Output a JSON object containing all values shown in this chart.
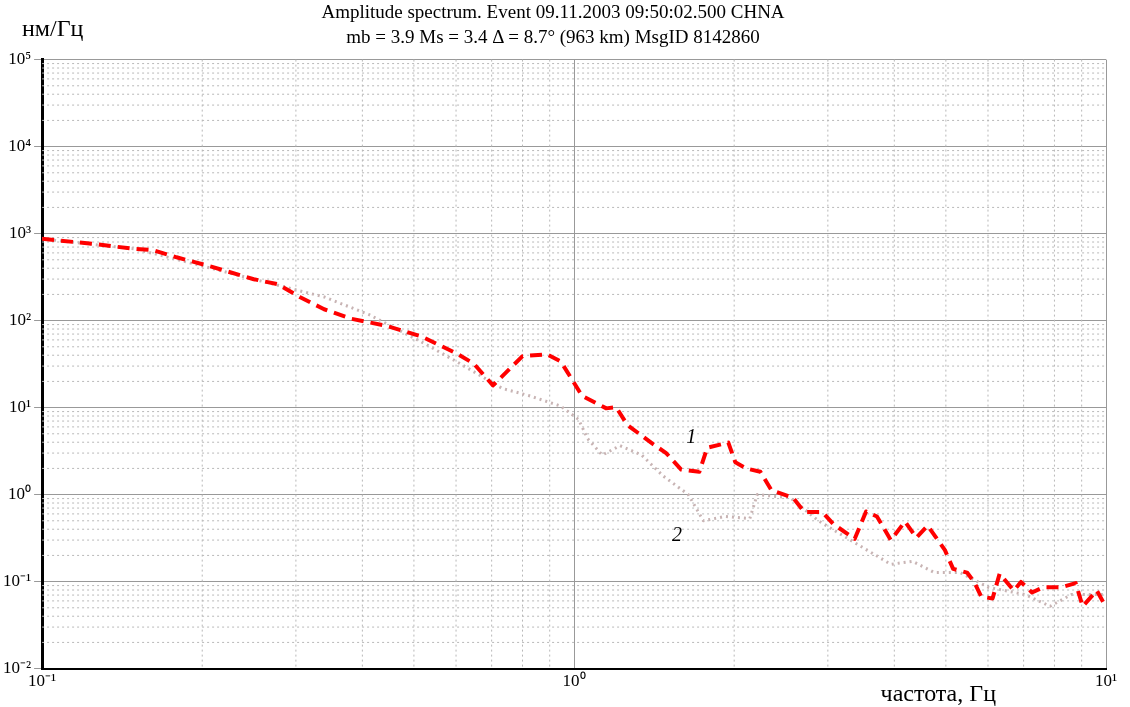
{
  "chart_data": {
    "type": "line",
    "title": "Amplitude spectrum. Event 09.11.2003 09:50:02.500 CHNA",
    "subtitle": "mb = 3.9 Ms = 3.4 Δ = 8.7° (963 km) MsgID 8142860",
    "xlabel": "частота, Гц",
    "ylabel": "нм/Гц",
    "log": "xy",
    "grid": true,
    "legend": false,
    "marker": "none",
    "xlim": [
      0.1,
      10
    ],
    "ylim": [
      0.01,
      100000
    ],
    "xticks": [
      {
        "value": 0.1,
        "label": "10⁻¹"
      },
      {
        "value": 1,
        "label": "10⁰"
      },
      {
        "value": 10,
        "label": "10¹"
      }
    ],
    "yticks": [
      {
        "value": 0.01,
        "label": "10⁻²"
      },
      {
        "value": 0.1,
        "label": "10⁻¹"
      },
      {
        "value": 1,
        "label": "10⁰"
      },
      {
        "value": 10,
        "label": "10¹"
      },
      {
        "value": 100,
        "label": "10²"
      },
      {
        "value": 1000,
        "label": "10³"
      },
      {
        "value": 10000,
        "label": "10⁴"
      },
      {
        "value": 100000,
        "label": "10⁵"
      }
    ],
    "series": [
      {
        "name": "1",
        "color": "#ff0000",
        "line_style": "dashed",
        "x": [
          0.1,
          0.1245,
          0.1497,
          0.1614,
          0.179,
          0.208,
          0.25,
          0.278,
          0.305,
          0.339,
          0.381,
          0.444,
          0.516,
          0.601,
          0.648,
          0.704,
          0.8,
          0.889,
          0.944,
          1.035,
          1.15,
          1.2,
          1.26,
          1.4,
          1.49,
          1.59,
          1.72,
          1.78,
          1.95,
          2.01,
          2.11,
          2.24,
          2.35,
          2.58,
          2.71,
          2.93,
          3.07,
          3.37,
          3.54,
          3.71,
          3.94,
          4.19,
          4.4,
          4.62,
          4.98,
          5.16,
          5.48,
          5.65,
          5.83,
          6.12,
          6.31,
          6.71,
          6.92,
          7.26,
          7.62,
          8.24,
          8.77,
          9.04,
          9.61,
          10
        ],
        "values": [
          870,
          763,
          665,
          647,
          534,
          417,
          299,
          261,
          187,
          135,
          105,
          87,
          66,
          42,
          32,
          18,
          39,
          41,
          34,
          13.7,
          9.8,
          10.1,
          6.3,
          3.9,
          3.0,
          1.94,
          1.83,
          3.45,
          3.96,
          2.35,
          1.99,
          1.83,
          1.12,
          0.92,
          0.63,
          0.63,
          0.46,
          0.31,
          0.64,
          0.56,
          0.3,
          0.49,
          0.32,
          0.44,
          0.23,
          0.14,
          0.127,
          0.099,
          0.067,
          0.064,
          0.123,
          0.079,
          0.099,
          0.075,
          0.086,
          0.086,
          0.096,
          0.052,
          0.079,
          0.051
        ]
      },
      {
        "name": "2",
        "color": "#c8b4b4",
        "line_style": "dotted",
        "x": [
          0.1,
          0.15,
          0.25,
          0.339,
          0.412,
          0.525,
          0.6,
          0.733,
          0.824,
          0.944,
          1.02,
          1.06,
          1.13,
          1.22,
          1.34,
          1.47,
          1.64,
          1.75,
          1.92,
          2.14,
          2.21,
          2.55,
          2.88,
          3.37,
          3.94,
          4.33,
          4.76,
          5.32,
          6.01,
          7.05,
          7.85,
          8.61,
          10
        ],
        "values": [
          870,
          665,
          299,
          187,
          117,
          54,
          34,
          16.6,
          13.7,
          10.4,
          7.3,
          4.4,
          2.85,
          3.65,
          2.85,
          1.64,
          1.0,
          0.5,
          0.56,
          0.53,
          1.0,
          0.92,
          0.5,
          0.28,
          0.158,
          0.171,
          0.127,
          0.127,
          0.086,
          0.071,
          0.052,
          0.071,
          0.071
        ]
      }
    ]
  }
}
